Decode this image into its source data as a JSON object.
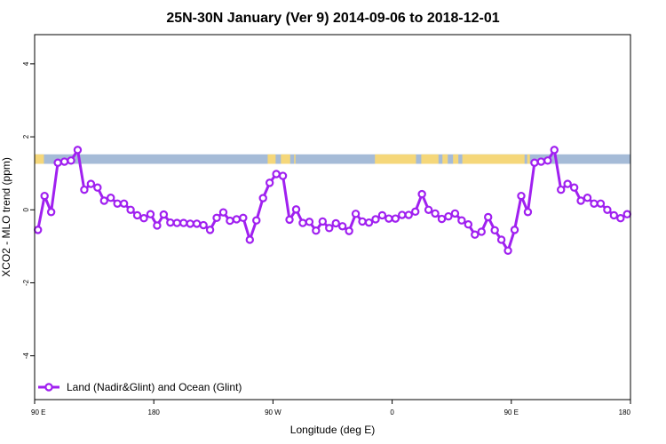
{
  "chart_data": {
    "type": "line",
    "title": "25N-30N January (Ver 9)   2014-09-06 to 2018-12-01",
    "xlabel": "Longitude (deg E)",
    "ylabel": "XCO2 - MLO trend (ppm)",
    "xlim": [
      90,
      540
    ],
    "ylim": [
      -5.2,
      4.8
    ],
    "x_ticks": [
      {
        "value": 90,
        "label": "90 E"
      },
      {
        "value": 180,
        "label": "180"
      },
      {
        "value": 270,
        "label": "90 W"
      },
      {
        "value": 360,
        "label": "0"
      },
      {
        "value": 450,
        "label": "90 E"
      },
      {
        "value": 540,
        "label": "180"
      }
    ],
    "y_ticks": [
      {
        "value": -4,
        "label": "-4"
      },
      {
        "value": -2,
        "label": "-2"
      },
      {
        "value": 0,
        "label": "0"
      },
      {
        "value": 2,
        "label": "2"
      },
      {
        "value": 4,
        "label": "4"
      }
    ],
    "grid": false,
    "legend_position": "bottom-left",
    "series": [
      {
        "name": "Land (Nadir&Glint) and Ocean (Glint)",
        "color": "#a020f0",
        "x": [
          92.5,
          97.5,
          102.5,
          107.5,
          112.5,
          117.5,
          122.5,
          127.5,
          132.5,
          137.5,
          142.5,
          147.5,
          152.5,
          157.5,
          162.5,
          167.5,
          172.5,
          177.5,
          182.5,
          187.5,
          192.5,
          197.5,
          202.5,
          207.5,
          212.5,
          217.5,
          222.5,
          227.5,
          232.5,
          237.5,
          242.5,
          247.5,
          252.5,
          257.5,
          262.5,
          267.5,
          272.5,
          277.5,
          282.5,
          287.5,
          292.5,
          297.5,
          302.5,
          307.5,
          312.5,
          317.5,
          322.5,
          327.5,
          332.5,
          337.5,
          342.5,
          347.5,
          352.5,
          357.5,
          362.5,
          367.5,
          372.5,
          377.5,
          382.5,
          387.5,
          392.5,
          397.5,
          402.5,
          407.5,
          412.5,
          417.5,
          422.5,
          427.5,
          432.5,
          437.5,
          442.5,
          447.5,
          452.5,
          457.5,
          462.5,
          467.5,
          472.5,
          477.5,
          482.5,
          487.5,
          492.5,
          497.5,
          502.5,
          507.5,
          512.5,
          517.5,
          522.5,
          527.5,
          532.5,
          537.5
        ],
        "values": [
          -0.55,
          0.38,
          -0.06,
          1.29,
          1.32,
          1.35,
          1.64,
          0.55,
          0.71,
          0.61,
          0.25,
          0.33,
          0.17,
          0.17,
          0.0,
          -0.15,
          -0.23,
          -0.12,
          -0.43,
          -0.13,
          -0.35,
          -0.36,
          -0.36,
          -0.38,
          -0.38,
          -0.42,
          -0.55,
          -0.22,
          -0.07,
          -0.3,
          -0.26,
          -0.22,
          -0.82,
          -0.29,
          0.32,
          0.74,
          0.98,
          0.93,
          -0.27,
          0.01,
          -0.36,
          -0.33,
          -0.57,
          -0.32,
          -0.5,
          -0.37,
          -0.45,
          -0.58,
          -0.11,
          -0.32,
          -0.35,
          -0.26,
          -0.15,
          -0.24,
          -0.24,
          -0.14,
          -0.14,
          -0.05,
          0.43,
          0.0,
          -0.1,
          -0.25,
          -0.18,
          -0.1,
          -0.29,
          -0.4,
          -0.68,
          -0.6,
          -0.2,
          -0.56,
          -0.82,
          -1.12,
          -0.55,
          0.38,
          -0.06,
          1.29,
          1.32,
          1.35,
          1.64,
          0.55,
          0.71,
          0.61,
          0.25,
          0.33,
          0.17,
          0.17,
          0.0,
          -0.15,
          -0.23,
          -0.12
        ]
      }
    ],
    "map_strip": {
      "y_range": [
        1.26,
        1.52
      ],
      "ocean_color": "#a5bbd7",
      "land_color": "#f5d77a",
      "land_segments": [
        [
          90,
          97
        ],
        [
          266,
          272
        ],
        [
          276,
          283
        ],
        [
          286,
          287
        ],
        [
          347,
          378
        ],
        [
          382,
          395
        ],
        [
          398,
          402
        ],
        [
          406,
          410
        ],
        [
          413,
          460
        ],
        [
          462,
          464
        ]
      ]
    }
  }
}
